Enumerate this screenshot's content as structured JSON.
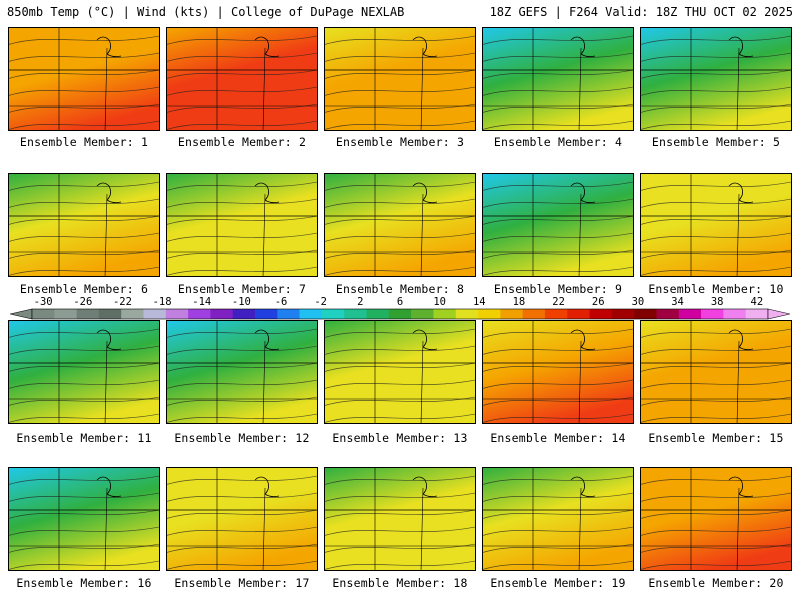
{
  "header": {
    "left": "850mb Temp (°C) | Wind (kts) | College of DuPage NEXLAB",
    "right": "18Z GEFS | F264 Valid: 18Z THU OCT 02 2025"
  },
  "label_prefix": "Ensemble Member: ",
  "members": [
    {
      "number": 1,
      "label": "Ensemble Member: 1",
      "pattern": [
        "warm",
        "warm",
        "hot"
      ]
    },
    {
      "number": 2,
      "label": "Ensemble Member: 2",
      "pattern": [
        "warm",
        "hot",
        "hot"
      ]
    },
    {
      "number": 3,
      "label": "Ensemble Member: 3",
      "pattern": [
        "mild",
        "warm",
        "warm"
      ]
    },
    {
      "number": 4,
      "label": "Ensemble Member: 4",
      "pattern": [
        "cold",
        "cool",
        "mild"
      ]
    },
    {
      "number": 5,
      "label": "Ensemble Member: 5",
      "pattern": [
        "cold",
        "cool",
        "mild"
      ]
    },
    {
      "number": 6,
      "label": "Ensemble Member: 6",
      "pattern": [
        "cool",
        "mild",
        "warm"
      ]
    },
    {
      "number": 7,
      "label": "Ensemble Member: 7",
      "pattern": [
        "cool",
        "mild",
        "mild"
      ]
    },
    {
      "number": 8,
      "label": "Ensemble Member: 8",
      "pattern": [
        "cool",
        "mild",
        "warm"
      ]
    },
    {
      "number": 9,
      "label": "Ensemble Member: 9",
      "pattern": [
        "cold",
        "cool",
        "mild"
      ]
    },
    {
      "number": 10,
      "label": "Ensemble Member: 10",
      "pattern": [
        "mild",
        "mild",
        "warm"
      ]
    },
    {
      "number": 11,
      "label": "Ensemble Member: 11",
      "pattern": [
        "cold",
        "cool",
        "mild"
      ]
    },
    {
      "number": 12,
      "label": "Ensemble Member: 12",
      "pattern": [
        "cold",
        "cool",
        "mild"
      ]
    },
    {
      "number": 13,
      "label": "Ensemble Member: 13",
      "pattern": [
        "cool",
        "mild",
        "mild"
      ]
    },
    {
      "number": 14,
      "label": "Ensemble Member: 14",
      "pattern": [
        "mild",
        "warm",
        "hot"
      ]
    },
    {
      "number": 15,
      "label": "Ensemble Member: 15",
      "pattern": [
        "mild",
        "warm",
        "warm"
      ]
    },
    {
      "number": 16,
      "label": "Ensemble Member: 16",
      "pattern": [
        "cold",
        "cool",
        "mild"
      ]
    },
    {
      "number": 17,
      "label": "Ensemble Member: 17",
      "pattern": [
        "mild",
        "mild",
        "warm"
      ]
    },
    {
      "number": 18,
      "label": "Ensemble Member: 18",
      "pattern": [
        "cool",
        "mild",
        "mild"
      ]
    },
    {
      "number": 19,
      "label": "Ensemble Member: 19",
      "pattern": [
        "cool",
        "mild",
        "warm"
      ]
    },
    {
      "number": 20,
      "label": "Ensemble Member: 20",
      "pattern": [
        "warm",
        "warm",
        "hot"
      ]
    }
  ],
  "colorbar": {
    "ticks": [
      "-30",
      "-26",
      "-22",
      "-18",
      "-14",
      "-10",
      "-6",
      "-2",
      "2",
      "6",
      "10",
      "14",
      "18",
      "22",
      "26",
      "30",
      "34",
      "38",
      "42"
    ],
    "colors": [
      "#7a8a80",
      "#8c9c92",
      "#6f7f75",
      "#5f6f66",
      "#9aa8a0",
      "#b8b8d8",
      "#c080e0",
      "#a040e0",
      "#8020c0",
      "#4020c0",
      "#2040e0",
      "#2080f0",
      "#20c0f0",
      "#20d0c0",
      "#20c090",
      "#20b060",
      "#30a030",
      "#60b030",
      "#a0d020",
      "#e0e020",
      "#f0d000",
      "#f0a000",
      "#f07000",
      "#f04000",
      "#e02000",
      "#c00000",
      "#a00000",
      "#800000",
      "#a00040",
      "#d000a0",
      "#f040e0",
      "#f080f0",
      "#f0b0f0"
    ]
  },
  "palette": {
    "hot": "#f03c14",
    "warm": "#f5a500",
    "mild": "#e8e020",
    "cool": "#30b040",
    "cold": "#20c8e8",
    "deep": "#2040d0"
  }
}
